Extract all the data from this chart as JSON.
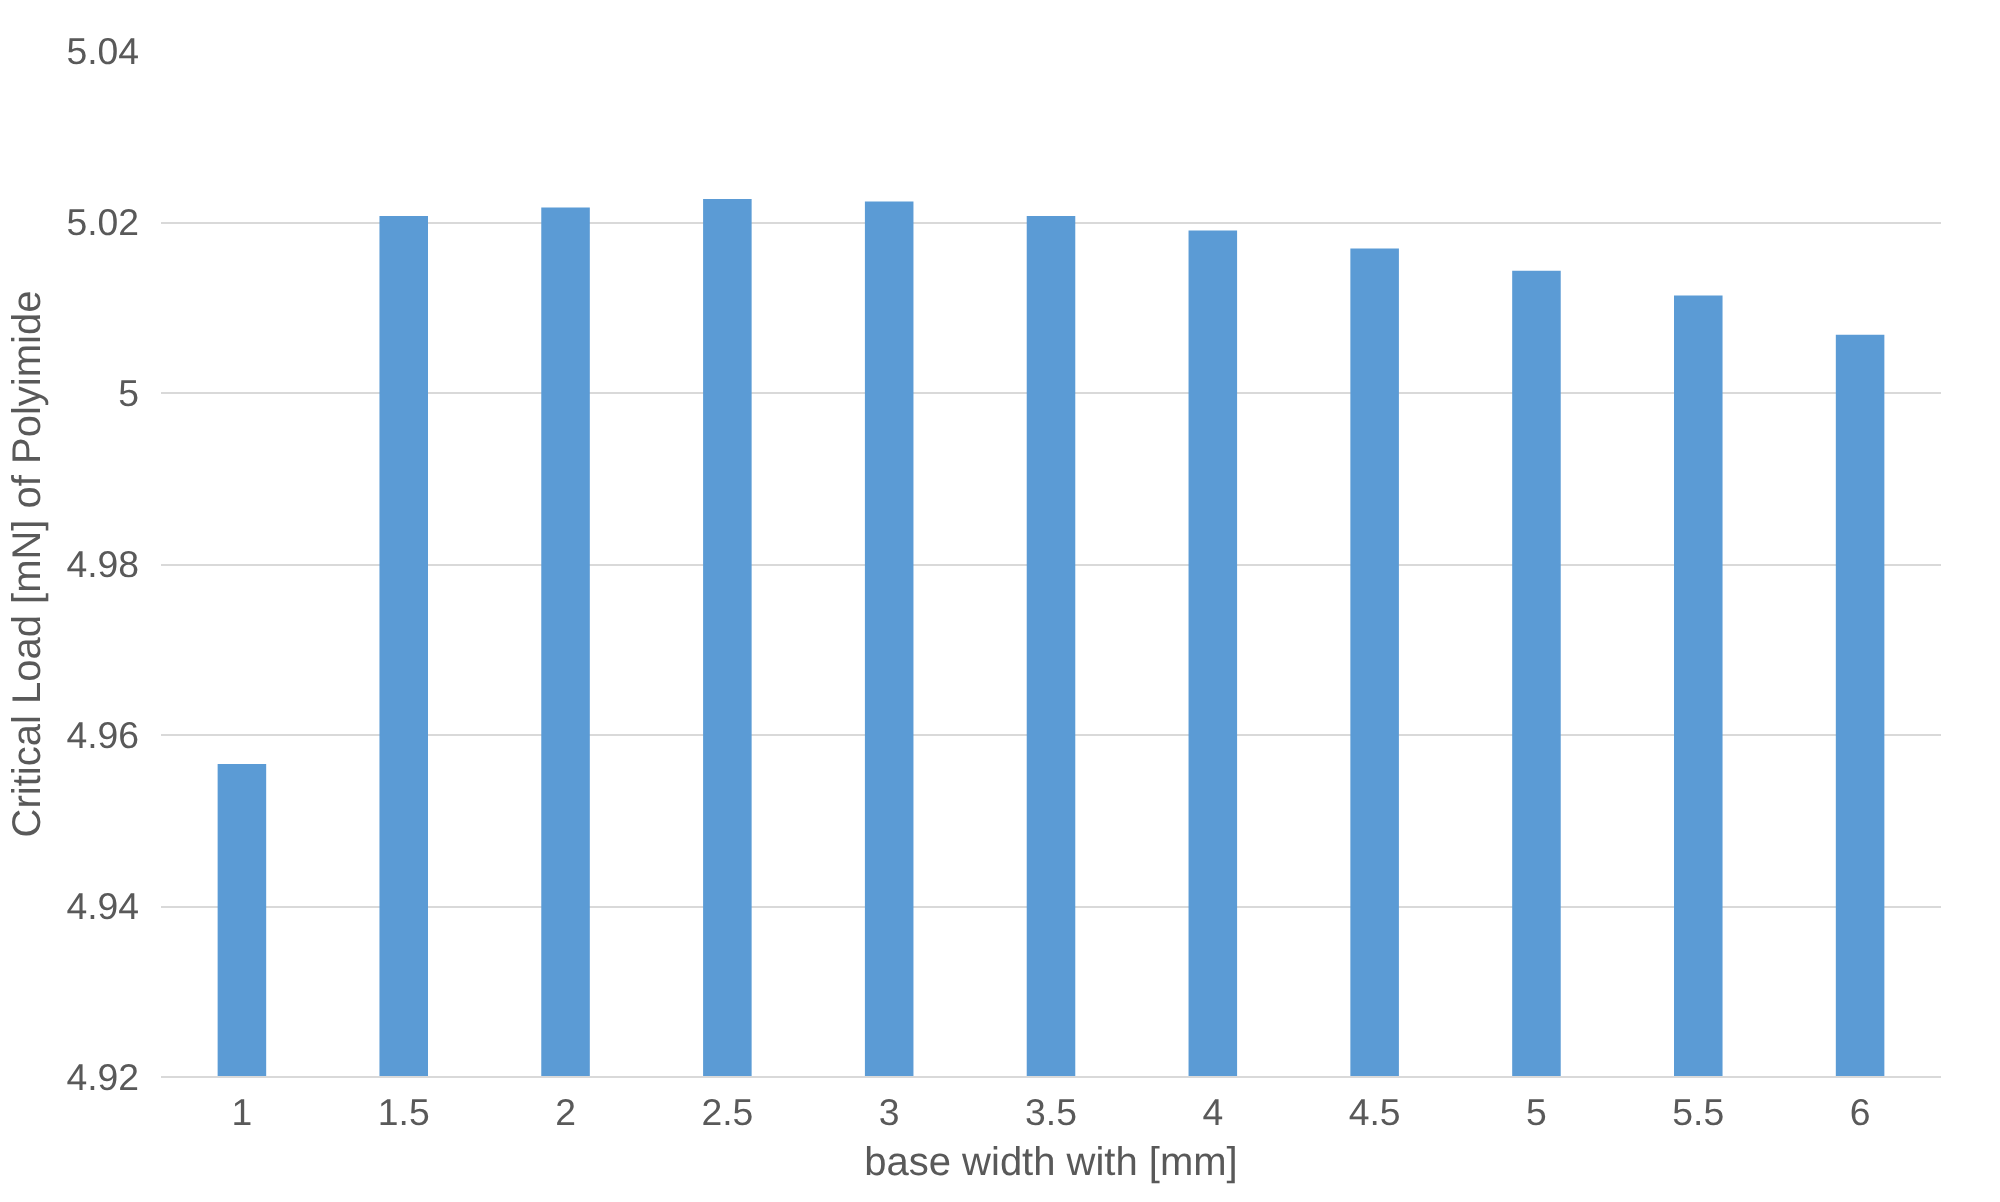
{
  "chart_data": {
    "type": "bar",
    "xlabel": "base width with [mm]",
    "ylabel": "Critical Load [mN] of Polyimide",
    "categories": [
      "1",
      "1.5",
      "2",
      "2.5",
      "3",
      "3.5",
      "4",
      "4.5",
      "5",
      "5.5",
      "6"
    ],
    "values": [
      4.9566,
      5.0207,
      5.0217,
      5.0227,
      5.0224,
      5.0207,
      5.019,
      5.0169,
      5.0143,
      5.0114,
      5.0068
    ],
    "color": "#5b9bd5",
    "ylim": [
      4.92,
      5.04
    ],
    "yticks": [
      {
        "value": 4.92,
        "label": "4.92"
      },
      {
        "value": 4.94,
        "label": "4.94"
      },
      {
        "value": 4.96,
        "label": "4.96"
      },
      {
        "value": 4.98,
        "label": "4.98"
      },
      {
        "value": 5.0,
        "label": "5"
      },
      {
        "value": 5.02,
        "label": "5.02"
      },
      {
        "value": 5.04,
        "label": "5.04"
      }
    ],
    "grid": "y"
  }
}
